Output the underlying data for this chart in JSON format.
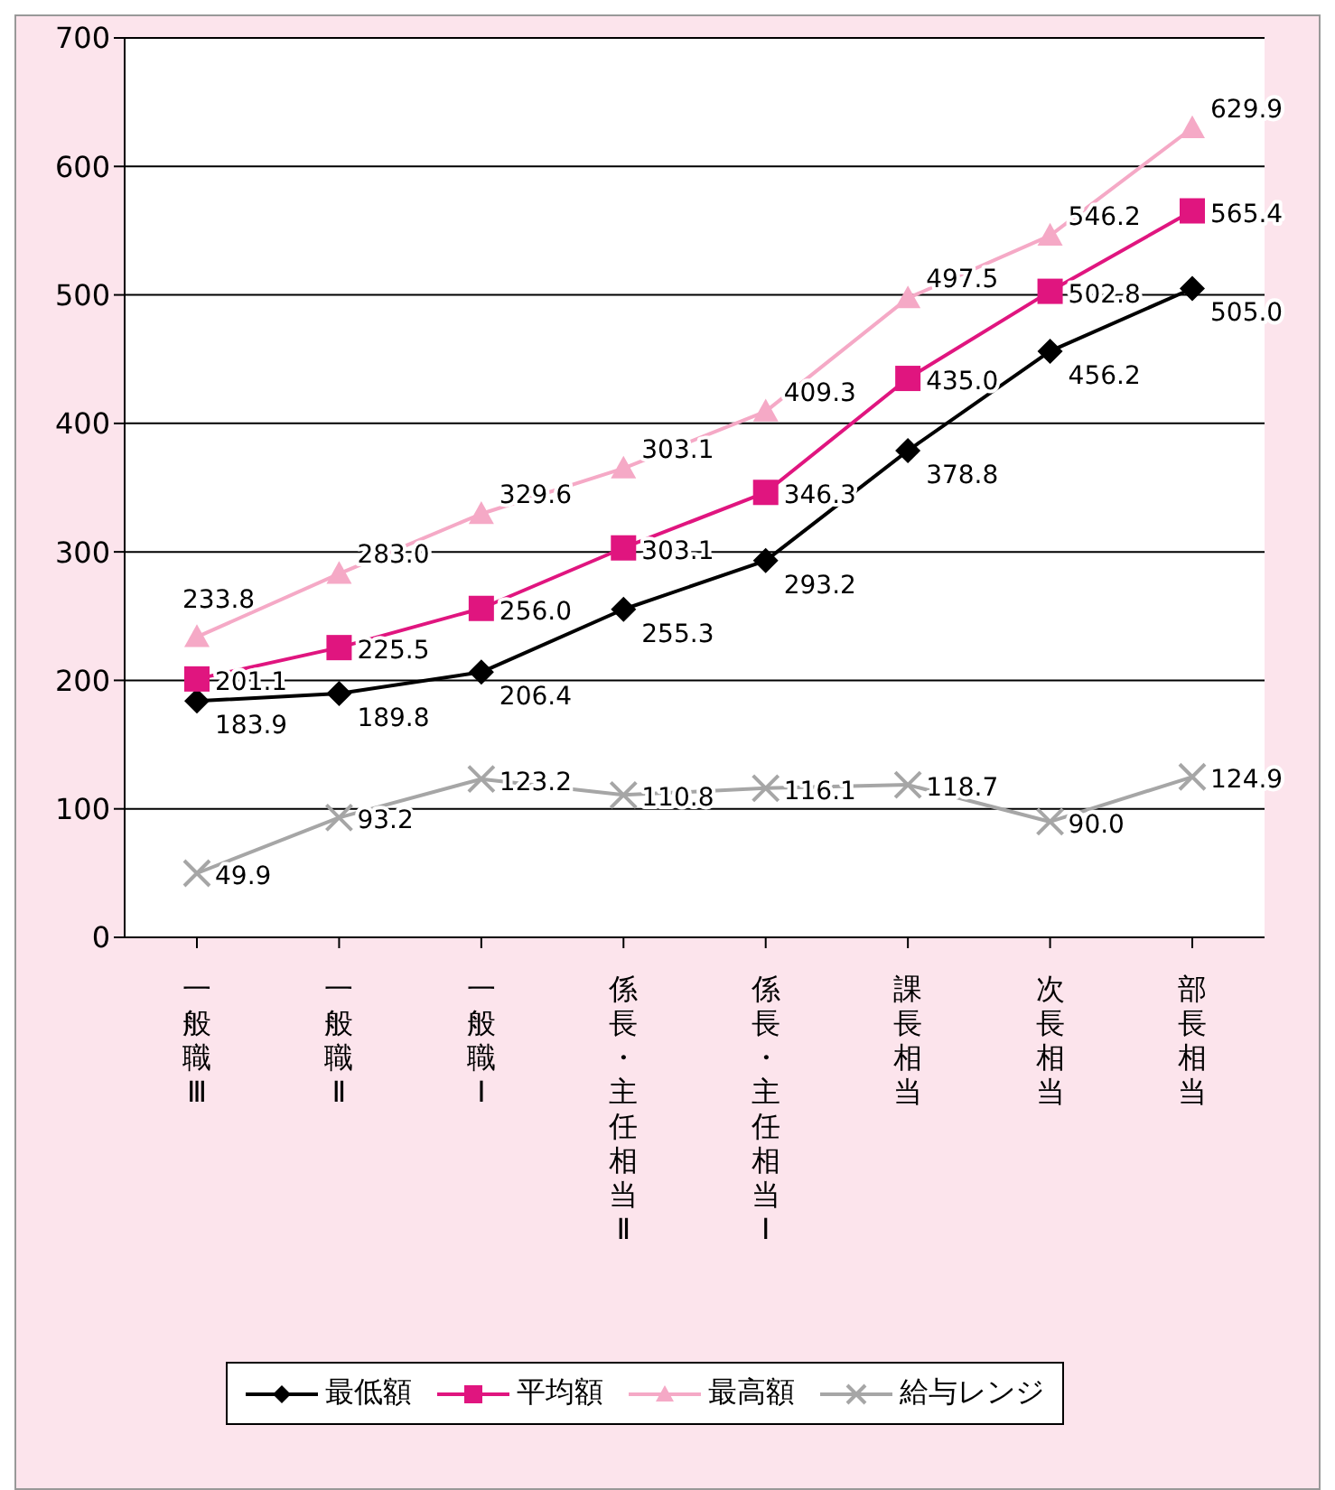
{
  "chart_data": {
    "type": "line",
    "categories": [
      "一般職Ⅲ",
      "一般職Ⅱ",
      "一般職Ⅰ",
      "係長・主任相当Ⅱ",
      "係長・主任相当Ⅰ",
      "課長相当",
      "次長相当",
      "部長相当"
    ],
    "series": [
      {
        "name": "最低額",
        "color": "#000000",
        "marker": "diamond",
        "values": [
          183.9,
          189.8,
          206.4,
          255.3,
          293.2,
          378.8,
          456.2,
          505.0
        ],
        "value_labels": [
          "183.9",
          "189.8",
          "206.4",
          "255.3",
          "293.2",
          "378.8",
          "456.2",
          "505.0"
        ]
      },
      {
        "name": "平均額",
        "color": "#e0157f",
        "marker": "square",
        "values": [
          201.1,
          225.5,
          256.0,
          303.1,
          346.3,
          435.0,
          502.8,
          565.4
        ],
        "value_labels": [
          "201.1",
          "225.5",
          "256.0",
          "303.1",
          "346.3",
          "435.0",
          "502.8",
          "565.4"
        ]
      },
      {
        "name": "最高額",
        "color": "#f5a9c6",
        "marker": "triangle",
        "values": [
          233.8,
          283.0,
          329.6,
          365,
          409.3,
          497.5,
          546.2,
          629.9
        ],
        "value_labels": [
          "233.8",
          "283.0",
          "329.6",
          null,
          "409.3",
          "497.5",
          "546.2",
          "629.9"
        ]
      },
      {
        "name": "給与レンジ",
        "color": "#a6a6a6",
        "marker": "cross",
        "values": [
          49.9,
          93.2,
          123.2,
          110.8,
          116.1,
          118.7,
          90.0,
          124.9
        ],
        "value_labels": [
          "49.9",
          "93.2",
          "123.2",
          "110.8",
          "116.1",
          "118.7",
          "90.0",
          "124.9"
        ]
      }
    ],
    "annotations": [
      {
        "text": "303.1",
        "x": "係長・主任相当Ⅱ",
        "y": 365
      }
    ],
    "ylim": [
      0,
      700
    ],
    "yticks": [
      0,
      100,
      200,
      300,
      400,
      500,
      600,
      700
    ],
    "grid": "y",
    "legend": "bottom"
  }
}
